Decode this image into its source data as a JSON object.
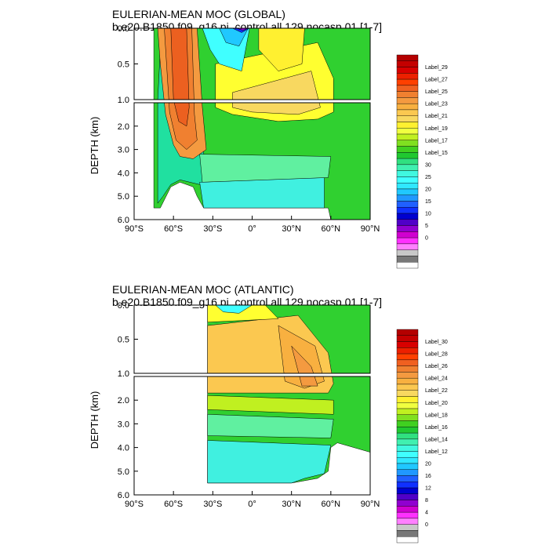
{
  "chart_data": [
    {
      "type": "heatmap",
      "id": "global",
      "title": "EULERIAN-MEAN MOC (GLOBAL)",
      "subtitle": "b.e20.B1850.f09_g16.pi_control.all.129.nocasp.01 [1-7]",
      "ylabel": "DEPTH (km)",
      "x_ticks": [
        "90°S",
        "60°S",
        "30°S",
        "0°",
        "30°N",
        "60°N",
        "90°N"
      ],
      "x_tick_values": [
        -90,
        -60,
        -30,
        0,
        30,
        60,
        90
      ],
      "xlim": [
        -90,
        90
      ],
      "y_ticks_upper": [
        "0.0",
        "0.5",
        "1.0"
      ],
      "y_ticks_lower": [
        "2.0",
        "3.0",
        "4.0",
        "5.0",
        "6.0"
      ],
      "ylim_upper": [
        0,
        1.0
      ],
      "ylim_lower": [
        1.0,
        6.0
      ],
      "colorbar_labels": [
        "Label_29",
        "Label_27",
        "Label_25",
        "Label_23",
        "Label_21",
        "Label_19",
        "Label_17",
        "Label_15",
        "30",
        "25",
        "20",
        "15",
        "10",
        "5",
        "0"
      ]
    },
    {
      "type": "heatmap",
      "id": "atlantic",
      "title": "EULERIAN-MEAN MOC (ATLANTIC)",
      "subtitle": "b.e20.B1850.f09_g16.pi_control.all.129.nocasp.01 [1-7]",
      "ylabel": "DEPTH (km)",
      "x_ticks": [
        "90°S",
        "60°S",
        "30°S",
        "0°",
        "30°N",
        "60°N",
        "90°N"
      ],
      "x_tick_values": [
        -90,
        -60,
        -30,
        0,
        30,
        60,
        90
      ],
      "xlim": [
        -90,
        90
      ],
      "y_ticks_upper": [
        "0.0",
        "0.5",
        "1.0"
      ],
      "y_ticks_lower": [
        "2.0",
        "3.0",
        "4.0",
        "5.0",
        "6.0"
      ],
      "ylim_upper": [
        0,
        1.0
      ],
      "ylim_lower": [
        1.0,
        6.0
      ],
      "colorbar_labels": [
        "Label_30",
        "Label_28",
        "Label_26",
        "Label_24",
        "Label_22",
        "Label_20",
        "Label_18",
        "Label_16",
        "Label_14",
        "Label_12",
        "20",
        "16",
        "12",
        "8",
        "4",
        "0"
      ]
    }
  ]
}
